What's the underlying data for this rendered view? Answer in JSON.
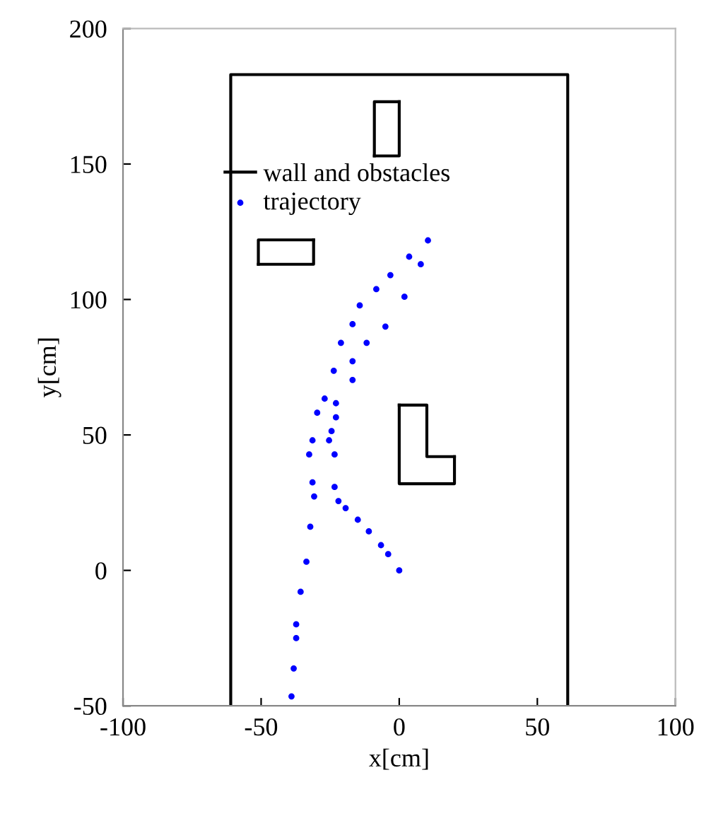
{
  "chart_data": {
    "type": "line",
    "xlabel": "x[cm]",
    "ylabel": "y[cm]",
    "xlim": [
      -100,
      100
    ],
    "ylim": [
      -50,
      200
    ],
    "xticks": [
      -100,
      -50,
      0,
      50,
      100
    ],
    "yticks": [
      -50,
      0,
      50,
      100,
      150,
      200
    ],
    "legend": "top left",
    "grid": false,
    "series": [
      {
        "name": "wall and obstacles",
        "type": "line",
        "color": "#000000",
        "x": [
          -61,
          -61,
          61,
          61
        ],
        "values": [
          -50,
          183,
          183,
          -50
        ]
      },
      {
        "color": "#000000",
        "x": [
          -9,
          0,
          0
        ],
        "values": [
          153,
          153,
          173
        ]
      },
      {
        "color": "#000000",
        "x": [
          0,
          -9,
          -9
        ],
        "values": [
          173,
          173,
          153
        ]
      },
      {
        "color": "#000000",
        "x": [
          -51,
          -31,
          -31
        ],
        "values": [
          113,
          113,
          122
        ]
      },
      {
        "color": "#000000",
        "x": [
          -31,
          -51,
          -51
        ],
        "values": [
          122,
          122,
          113
        ]
      },
      {
        "color": "#000000",
        "x": [
          0,
          10,
          10,
          20
        ],
        "values": [
          61,
          61,
          42,
          42
        ]
      },
      {
        "color": "#000000",
        "x": [
          20,
          20,
          0,
          0
        ],
        "values": [
          42,
          32,
          32,
          61
        ]
      },
      {
        "name": "trajectory",
        "type": "scatter",
        "color": "#0000ff",
        "marker": "circle",
        "x": [
          0,
          -4,
          -6.6,
          -11,
          -15,
          -19.4,
          -22,
          -23.4,
          -23.4,
          -25.4,
          -24.5,
          -22.9,
          -22.9,
          -16.9,
          -16.9,
          -11.8,
          -5,
          1.9,
          7.8,
          10.4,
          3.6,
          -3.2,
          -8.3,
          -14.3,
          -16.9,
          -21.1,
          -23.7,
          -27,
          -29.7,
          -31.4,
          -32.6,
          -31.4,
          -30.8,
          -32.2,
          -33.6,
          -35.7,
          -37.3,
          -37.3,
          -38.2,
          -39
        ],
        "values": [
          0,
          6,
          9.3,
          14.4,
          18.7,
          23,
          25.6,
          30.8,
          42.8,
          48,
          51.4,
          56.5,
          61.7,
          70.3,
          77.2,
          84,
          90,
          101,
          113,
          121.8,
          115.8,
          109,
          103.8,
          97.8,
          90.9,
          84,
          73.7,
          63.4,
          58.2,
          48,
          42.8,
          32.5,
          27.3,
          16.1,
          3.2,
          -7.9,
          -19.9,
          -25,
          -36.2,
          -46.5
        ]
      }
    ]
  }
}
